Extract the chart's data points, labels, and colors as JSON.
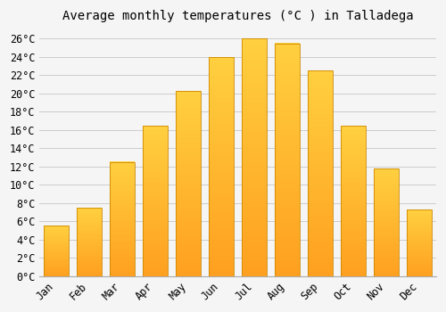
{
  "title": "Average monthly temperatures (°C ) in Talladega",
  "months": [
    "Jan",
    "Feb",
    "Mar",
    "Apr",
    "May",
    "Jun",
    "Jul",
    "Aug",
    "Sep",
    "Oct",
    "Nov",
    "Dec"
  ],
  "values": [
    5.5,
    7.5,
    12.5,
    16.5,
    20.3,
    24.0,
    26.0,
    25.5,
    22.5,
    16.5,
    11.8,
    7.3
  ],
  "bar_color_top": "#FFD040",
  "bar_color_bottom": "#FFA020",
  "bar_edge_color": "#CC8800",
  "ylim": [
    0,
    27
  ],
  "ytick_step": 2,
  "background_color": "#F5F5F5",
  "plot_bg_color": "#F5F5F5",
  "grid_color": "#CCCCCC",
  "title_fontsize": 10,
  "tick_fontsize": 8.5,
  "font_family": "monospace"
}
